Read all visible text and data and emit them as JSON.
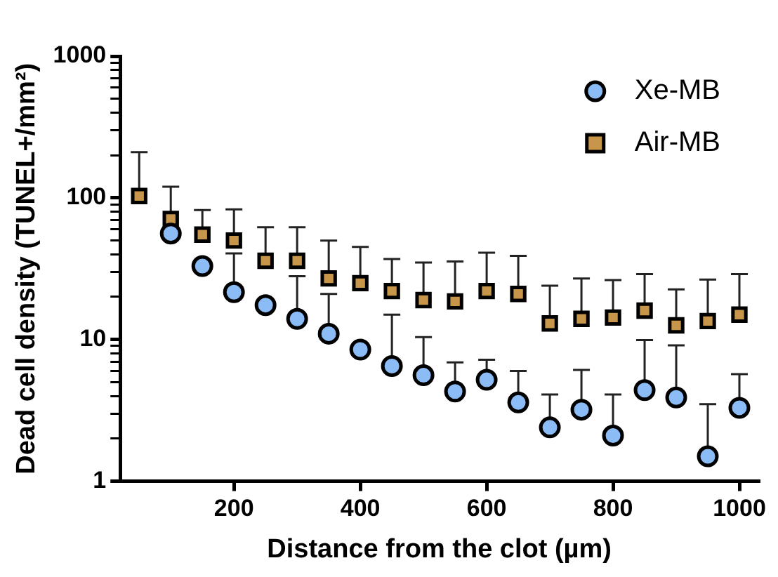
{
  "chart_data": {
    "type": "scatter",
    "xlabel": "Distance from the clot (µm)",
    "ylabel": "Dead cell density (TUNEL+/mm²)",
    "x": [
      50,
      100,
      150,
      200,
      250,
      300,
      350,
      400,
      450,
      500,
      550,
      600,
      650,
      700,
      750,
      800,
      850,
      900,
      950,
      1000
    ],
    "series": [
      {
        "name": "Xe-MB",
        "color": "#8cbcf5",
        "marker": "circle",
        "values": [
          null,
          56,
          33,
          21.6,
          17.5,
          14,
          11,
          8.5,
          6.5,
          5.6,
          4.3,
          5.2,
          3.6,
          2.4,
          3.2,
          2.1,
          4.4,
          3.9,
          1.5,
          3.3
        ],
        "errors": [
          null,
          null,
          null,
          [
            21.6,
            40.6
          ],
          null,
          [
            14,
            28
          ],
          [
            11,
            21
          ],
          null,
          [
            6.5,
            15
          ],
          [
            5.6,
            10.4
          ],
          [
            4.3,
            6.9
          ],
          [
            5.2,
            7.2
          ],
          [
            3.6,
            6
          ],
          [
            2.4,
            4.1
          ],
          [
            3.2,
            6.1
          ],
          [
            2.1,
            4.1
          ],
          [
            4.4,
            9.9
          ],
          [
            3.9,
            9.1
          ],
          [
            1.5,
            3.5
          ],
          [
            3.3,
            5.7
          ]
        ]
      },
      {
        "name": "Air-MB",
        "color": "#c8964a",
        "marker": "square",
        "values": [
          103,
          71,
          55,
          50,
          36,
          36,
          27,
          25,
          22,
          19,
          18.6,
          22,
          21,
          13,
          14,
          14.3,
          16,
          12.6,
          13.5,
          15
        ],
        "errors": [
          [
            103,
            210
          ],
          [
            71,
            120
          ],
          [
            55,
            82
          ],
          [
            50,
            83
          ],
          [
            36,
            62
          ],
          [
            36,
            62
          ],
          [
            27,
            50
          ],
          [
            25,
            45
          ],
          [
            22,
            37
          ],
          [
            19,
            35
          ],
          [
            18.6,
            35.6
          ],
          [
            22,
            41
          ],
          [
            21,
            39
          ],
          [
            13,
            24
          ],
          [
            14,
            27
          ],
          [
            14.3,
            26.3
          ],
          [
            16,
            29
          ],
          [
            12.6,
            22.6
          ],
          [
            13.5,
            26.5
          ],
          [
            15,
            29
          ]
        ]
      }
    ],
    "xlim": [
      20,
      1030
    ],
    "xticks": [
      200,
      400,
      600,
      800,
      1000
    ],
    "log": "y",
    "ylim": [
      1,
      1000
    ],
    "yticks": [
      1,
      {
        "value": 2,
        "label": null
      },
      {
        "value": 3,
        "label": null
      },
      {
        "value": 4,
        "label": null
      },
      {
        "value": 5,
        "label": null
      },
      {
        "value": 6,
        "label": null
      },
      {
        "value": 7,
        "label": null
      },
      {
        "value": 8,
        "label": null
      },
      {
        "value": 9,
        "label": null
      },
      10,
      {
        "value": 20,
        "label": null
      },
      {
        "value": 30,
        "label": null
      },
      {
        "value": 40,
        "label": null
      },
      {
        "value": 50,
        "label": null
      },
      {
        "value": 60,
        "label": null
      },
      {
        "value": 70,
        "label": null
      },
      {
        "value": 80,
        "label": null
      },
      {
        "value": 90,
        "label": null
      },
      100,
      {
        "value": 200,
        "label": null
      },
      {
        "value": 300,
        "label": null
      },
      {
        "value": 400,
        "label": null
      },
      {
        "value": 500,
        "label": null
      },
      {
        "value": 600,
        "label": null
      },
      {
        "value": 700,
        "label": null
      },
      {
        "value": 800,
        "label": null
      },
      {
        "value": 900,
        "label": null
      },
      1000
    ],
    "grid": false,
    "legend": "top right"
  }
}
